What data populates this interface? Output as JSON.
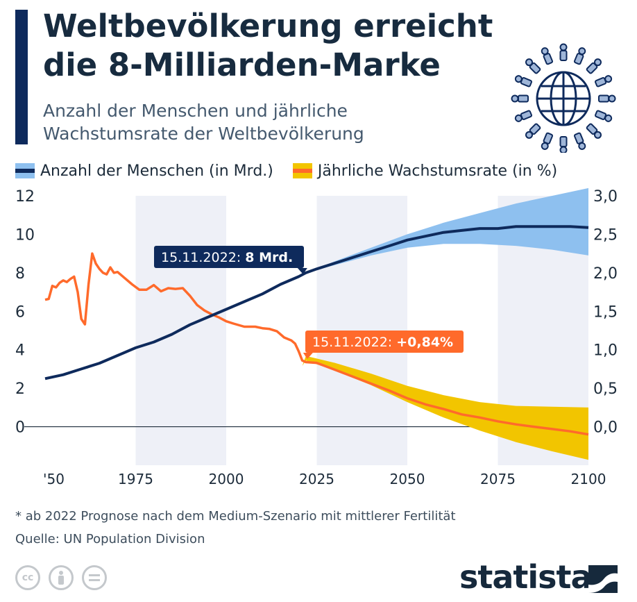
{
  "title": "Weltbevölkerung erreicht die 8-Milliarden-Marke",
  "subtitle": "Anzahl der Menschen und jährliche Wachstumsrate der Weltbevölkerung",
  "legend": [
    {
      "label": "Anzahl der Menschen (in Mrd.)",
      "band_color": "#8ec0ef",
      "line_color": "#0e2a5c"
    },
    {
      "label": "Jährliche Wachstumsrate (in %)",
      "band_color": "#f2c500",
      "line_color": "#ff6a2b"
    }
  ],
  "footnote": "* ab 2022 Prognose nach dem Medium-Szenario mit mittlerer Fertilität",
  "source": "Quelle: UN Population Division",
  "brand": "statista",
  "license_icons": [
    "cc-icon",
    "attribution-icon",
    "no-derivatives-icon"
  ],
  "colors": {
    "population": "#0e2a5c",
    "population_band": "#8ec0ef",
    "growth": "#ff6a2b",
    "growth_band": "#f2c500",
    "shade": "#eef0f7"
  },
  "chart_data": {
    "type": "line",
    "x_ticks": [
      "'50",
      "1975",
      "2000",
      "2025",
      "2050",
      "2075",
      "2100"
    ],
    "x_tick_years": [
      1950,
      1975,
      2000,
      2025,
      2050,
      2075,
      2100
    ],
    "xlim": [
      1950,
      2100
    ],
    "y_left_ticks": [
      "0",
      "2",
      "4",
      "6",
      "8",
      "10",
      "12"
    ],
    "y_left_values": [
      0,
      2,
      4,
      6,
      8,
      10,
      12
    ],
    "y_right_ticks": [
      "0,0",
      "0,5",
      "1,0",
      "1,5",
      "2,0",
      "2,5",
      "3,0"
    ],
    "y_right_values": [
      0,
      0.5,
      1.0,
      1.5,
      2.0,
      2.5,
      3.0
    ],
    "ylim_left": [
      -2,
      12
    ],
    "ylim_right": [
      -0.5,
      3.0
    ],
    "shaded_periods": [
      [
        1975,
        2000
      ],
      [
        2025,
        2050
      ],
      [
        2075,
        2100
      ]
    ],
    "annotations": [
      {
        "text_prefix": "15.11.2022: ",
        "text_bold": "8 Mrd.",
        "year": 2022,
        "value": 8.0,
        "series": "population"
      },
      {
        "text_prefix": "15.11.2022: ",
        "text_bold": "+0,84%",
        "year": 2022,
        "value": 0.84,
        "series": "growth"
      }
    ],
    "series": [
      {
        "name": "Anzahl der Menschen (in Mrd.)",
        "axis": "left",
        "x": [
          1950,
          1955,
          1960,
          1965,
          1970,
          1975,
          1980,
          1985,
          1990,
          1995,
          2000,
          2005,
          2010,
          2015,
          2020,
          2022,
          2025,
          2030,
          2035,
          2040,
          2045,
          2050,
          2055,
          2060,
          2065,
          2070,
          2075,
          2080,
          2085,
          2090,
          2095,
          2100
        ],
        "values": [
          2.5,
          2.7,
          3.0,
          3.3,
          3.7,
          4.1,
          4.4,
          4.8,
          5.3,
          5.7,
          6.1,
          6.5,
          6.9,
          7.4,
          7.8,
          8.0,
          8.2,
          8.5,
          8.8,
          9.1,
          9.4,
          9.7,
          9.9,
          10.1,
          10.2,
          10.3,
          10.3,
          10.4,
          10.4,
          10.4,
          10.4,
          10.35
        ],
        "band_x": [
          2022,
          2030,
          2040,
          2050,
          2060,
          2070,
          2080,
          2090,
          2100
        ],
        "band_low": [
          8.0,
          8.4,
          8.9,
          9.3,
          9.5,
          9.5,
          9.4,
          9.2,
          8.9
        ],
        "band_high": [
          8.0,
          8.6,
          9.3,
          10.0,
          10.6,
          11.1,
          11.6,
          12.0,
          12.4
        ]
      },
      {
        "name": "Jährliche Wachstumsrate (in %)",
        "axis": "right",
        "x": [
          1950,
          1951,
          1952,
          1953,
          1954,
          1955,
          1956,
          1957,
          1958,
          1959,
          1960,
          1961,
          1962,
          1963,
          1964,
          1965,
          1966,
          1967,
          1968,
          1969,
          1970,
          1972,
          1974,
          1976,
          1978,
          1980,
          1982,
          1984,
          1986,
          1988,
          1990,
          1992,
          1994,
          1996,
          1998,
          2000,
          2002,
          2005,
          2008,
          2010,
          2012,
          2014,
          2016,
          2018,
          2019,
          2020,
          2021,
          2022,
          2025,
          2030,
          2035,
          2040,
          2045,
          2050,
          2055,
          2060,
          2065,
          2070,
          2075,
          2080,
          2085,
          2090,
          2095,
          2100
        ],
        "values": [
          1.65,
          1.66,
          1.83,
          1.81,
          1.87,
          1.9,
          1.88,
          1.92,
          1.95,
          1.75,
          1.4,
          1.33,
          1.85,
          2.25,
          2.12,
          2.05,
          2.0,
          1.98,
          2.07,
          2.0,
          2.01,
          1.93,
          1.85,
          1.78,
          1.78,
          1.84,
          1.76,
          1.8,
          1.79,
          1.8,
          1.7,
          1.58,
          1.51,
          1.46,
          1.42,
          1.37,
          1.34,
          1.3,
          1.3,
          1.28,
          1.27,
          1.24,
          1.16,
          1.12,
          1.08,
          0.98,
          0.86,
          0.84,
          0.83,
          0.74,
          0.65,
          0.56,
          0.47,
          0.37,
          0.29,
          0.23,
          0.16,
          0.12,
          0.07,
          0.03,
          0.0,
          -0.03,
          -0.06,
          -0.1
        ],
        "band_x": [
          2021,
          2022,
          2030,
          2040,
          2050,
          2060,
          2070,
          2080,
          2090,
          2100
        ],
        "band_low": [
          0.79,
          0.86,
          0.73,
          0.54,
          0.32,
          0.12,
          -0.05,
          -0.2,
          -0.32,
          -0.43
        ],
        "band_high": [
          0.79,
          0.92,
          0.83,
          0.69,
          0.53,
          0.41,
          0.32,
          0.27,
          0.26,
          0.25
        ]
      }
    ]
  }
}
